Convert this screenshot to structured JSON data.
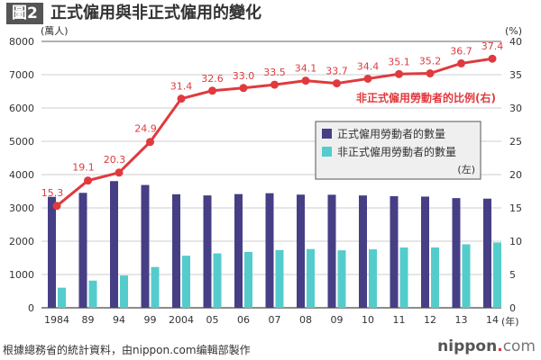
{
  "header": {
    "badge": "圖2",
    "title": "正式僱用與非正式僱用的變化"
  },
  "footer": {
    "source": "根據總務省的統計資料，由nippon.com编輯部製作",
    "logo_main": "nippon",
    "logo_dot": ".",
    "logo_tail": "com"
  },
  "chart_data": {
    "type": "bar+line",
    "categories": [
      "1984",
      "89",
      "94",
      "99",
      "2004",
      "05",
      "06",
      "07",
      "08",
      "09",
      "10",
      "11",
      "12",
      "13",
      "14"
    ],
    "xlabel": "(年)",
    "ylabel_left": "(萬人)",
    "ylabel_right": "(%)",
    "ylim_left": [
      0,
      8000
    ],
    "yticks_left": [
      0,
      1000,
      2000,
      3000,
      4000,
      5000,
      6000,
      7000,
      8000
    ],
    "ylim_right": [
      0,
      40
    ],
    "yticks_right": [
      0,
      5,
      10,
      15,
      20,
      25,
      30,
      35,
      40
    ],
    "grid": true,
    "series": [
      {
        "name": "正式僱用勞動者的數量",
        "type": "bar",
        "axis": "left",
        "color": "#463f85",
        "values": [
          3333,
          3452,
          3805,
          3688,
          3410,
          3375,
          3415,
          3441,
          3399,
          3395,
          3374,
          3352,
          3340,
          3294,
          3278
        ]
      },
      {
        "name": "非正式僱用勞動者的數量",
        "type": "bar",
        "axis": "left",
        "color": "#55cccc",
        "values": [
          604,
          817,
          971,
          1225,
          1564,
          1634,
          1678,
          1735,
          1765,
          1727,
          1756,
          1811,
          1813,
          1906,
          1962
        ]
      },
      {
        "name": "非正式僱用勞動者的比例(右)",
        "type": "line",
        "axis": "right",
        "color": "#e03a3e",
        "values": [
          15.3,
          19.1,
          20.3,
          24.9,
          31.4,
          32.6,
          33.0,
          33.5,
          34.1,
          33.7,
          34.4,
          35.1,
          35.2,
          36.7,
          37.4
        ],
        "data_labels": [
          "15.3",
          "19.1",
          "20.3",
          "24.9",
          "31.4",
          "32.6",
          "33.0",
          "33.5",
          "34.1",
          "33.7",
          "34.4",
          "35.1",
          "35.2",
          "36.7",
          "37.4"
        ]
      }
    ],
    "legend": {
      "placement": "center-right",
      "note": "(左)"
    }
  }
}
